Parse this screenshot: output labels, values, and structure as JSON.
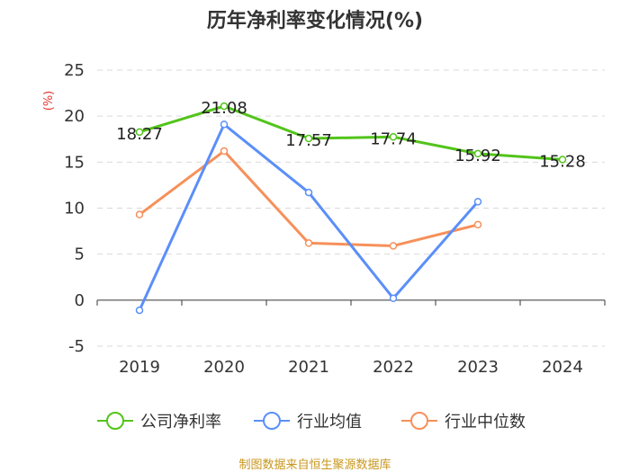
{
  "chart_data": {
    "type": "line",
    "title": "历年净利率变化情况(%)",
    "ylabel": "(%)",
    "categories": [
      "2019",
      "2020",
      "2021",
      "2022",
      "2023",
      "2024"
    ],
    "ylim": [
      -5,
      25
    ],
    "yticks": [
      -5,
      0,
      5,
      10,
      15,
      20,
      25
    ],
    "grid": true,
    "legend_position": "bottom",
    "series": [
      {
        "name": "公司净利率",
        "color": "#52c41a",
        "values": [
          18.27,
          21.08,
          17.57,
          17.74,
          15.92,
          15.28
        ],
        "show_labels": true
      },
      {
        "name": "行业均值",
        "color": "#5b8ff9",
        "values": [
          -1.1,
          19.1,
          11.7,
          0.2,
          10.7,
          null
        ],
        "show_labels": false
      },
      {
        "name": "行业中位数",
        "color": "#f6905a",
        "values": [
          9.3,
          16.2,
          6.2,
          5.9,
          8.2,
          null
        ],
        "show_labels": false
      }
    ]
  },
  "source_text": "制图数据来自恒生聚源数据库"
}
